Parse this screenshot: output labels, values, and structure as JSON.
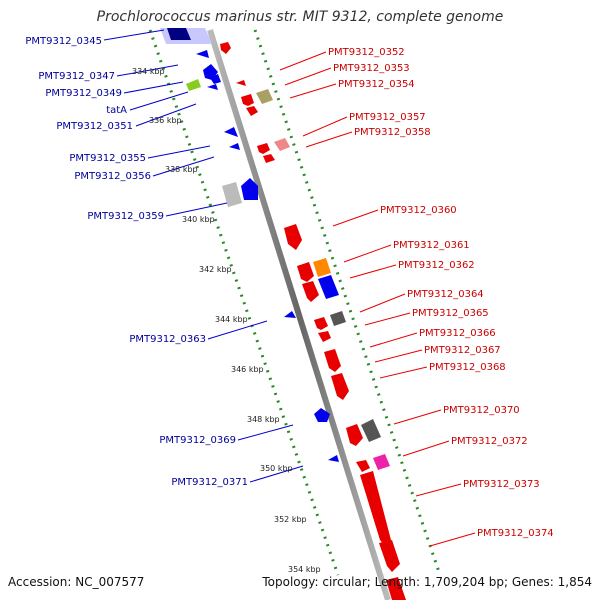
{
  "title": "Prochlorococcus marinus str. MIT 9312, complete genome",
  "footer": {
    "accession": "Accession: NC_007577",
    "summary": "Topology: circular; Length: 1,709,204 bp; Genes: 1,854"
  },
  "colors": {
    "forward_gene": "#e80000",
    "reverse_gene": "#0000ee",
    "backbone": "#888888",
    "tick_dots": "#2a8a2a",
    "label_red": "#cc0000",
    "label_blue": "#000099"
  },
  "ticks": [
    "334 kbp",
    "336 kbp",
    "338 kbp",
    "340 kbp",
    "342 kbp",
    "344 kbp",
    "346 kbp",
    "348 kbp",
    "350 kbp",
    "352 kbp",
    "354 kbp"
  ],
  "labels_right": [
    "PMT9312_0352",
    "PMT9312_0353",
    "PMT9312_0354",
    "PMT9312_0357",
    "PMT9312_0358",
    "PMT9312_0360",
    "PMT9312_0361",
    "PMT9312_0362",
    "PMT9312_0364",
    "PMT9312_0365",
    "PMT9312_0366",
    "PMT9312_0367",
    "PMT9312_0368",
    "PMT9312_0370",
    "PMT9312_0372",
    "PMT9312_0373",
    "PMT9312_0374"
  ],
  "labels_left": [
    "PMT9312_0345",
    "PMT9312_0347",
    "PMT9312_0349",
    "tatA",
    "PMT9312_0351",
    "PMT9312_0355",
    "PMT9312_0356",
    "PMT9312_0359",
    "PMT9312_0363",
    "PMT9312_0369",
    "PMT9312_0371"
  ]
}
